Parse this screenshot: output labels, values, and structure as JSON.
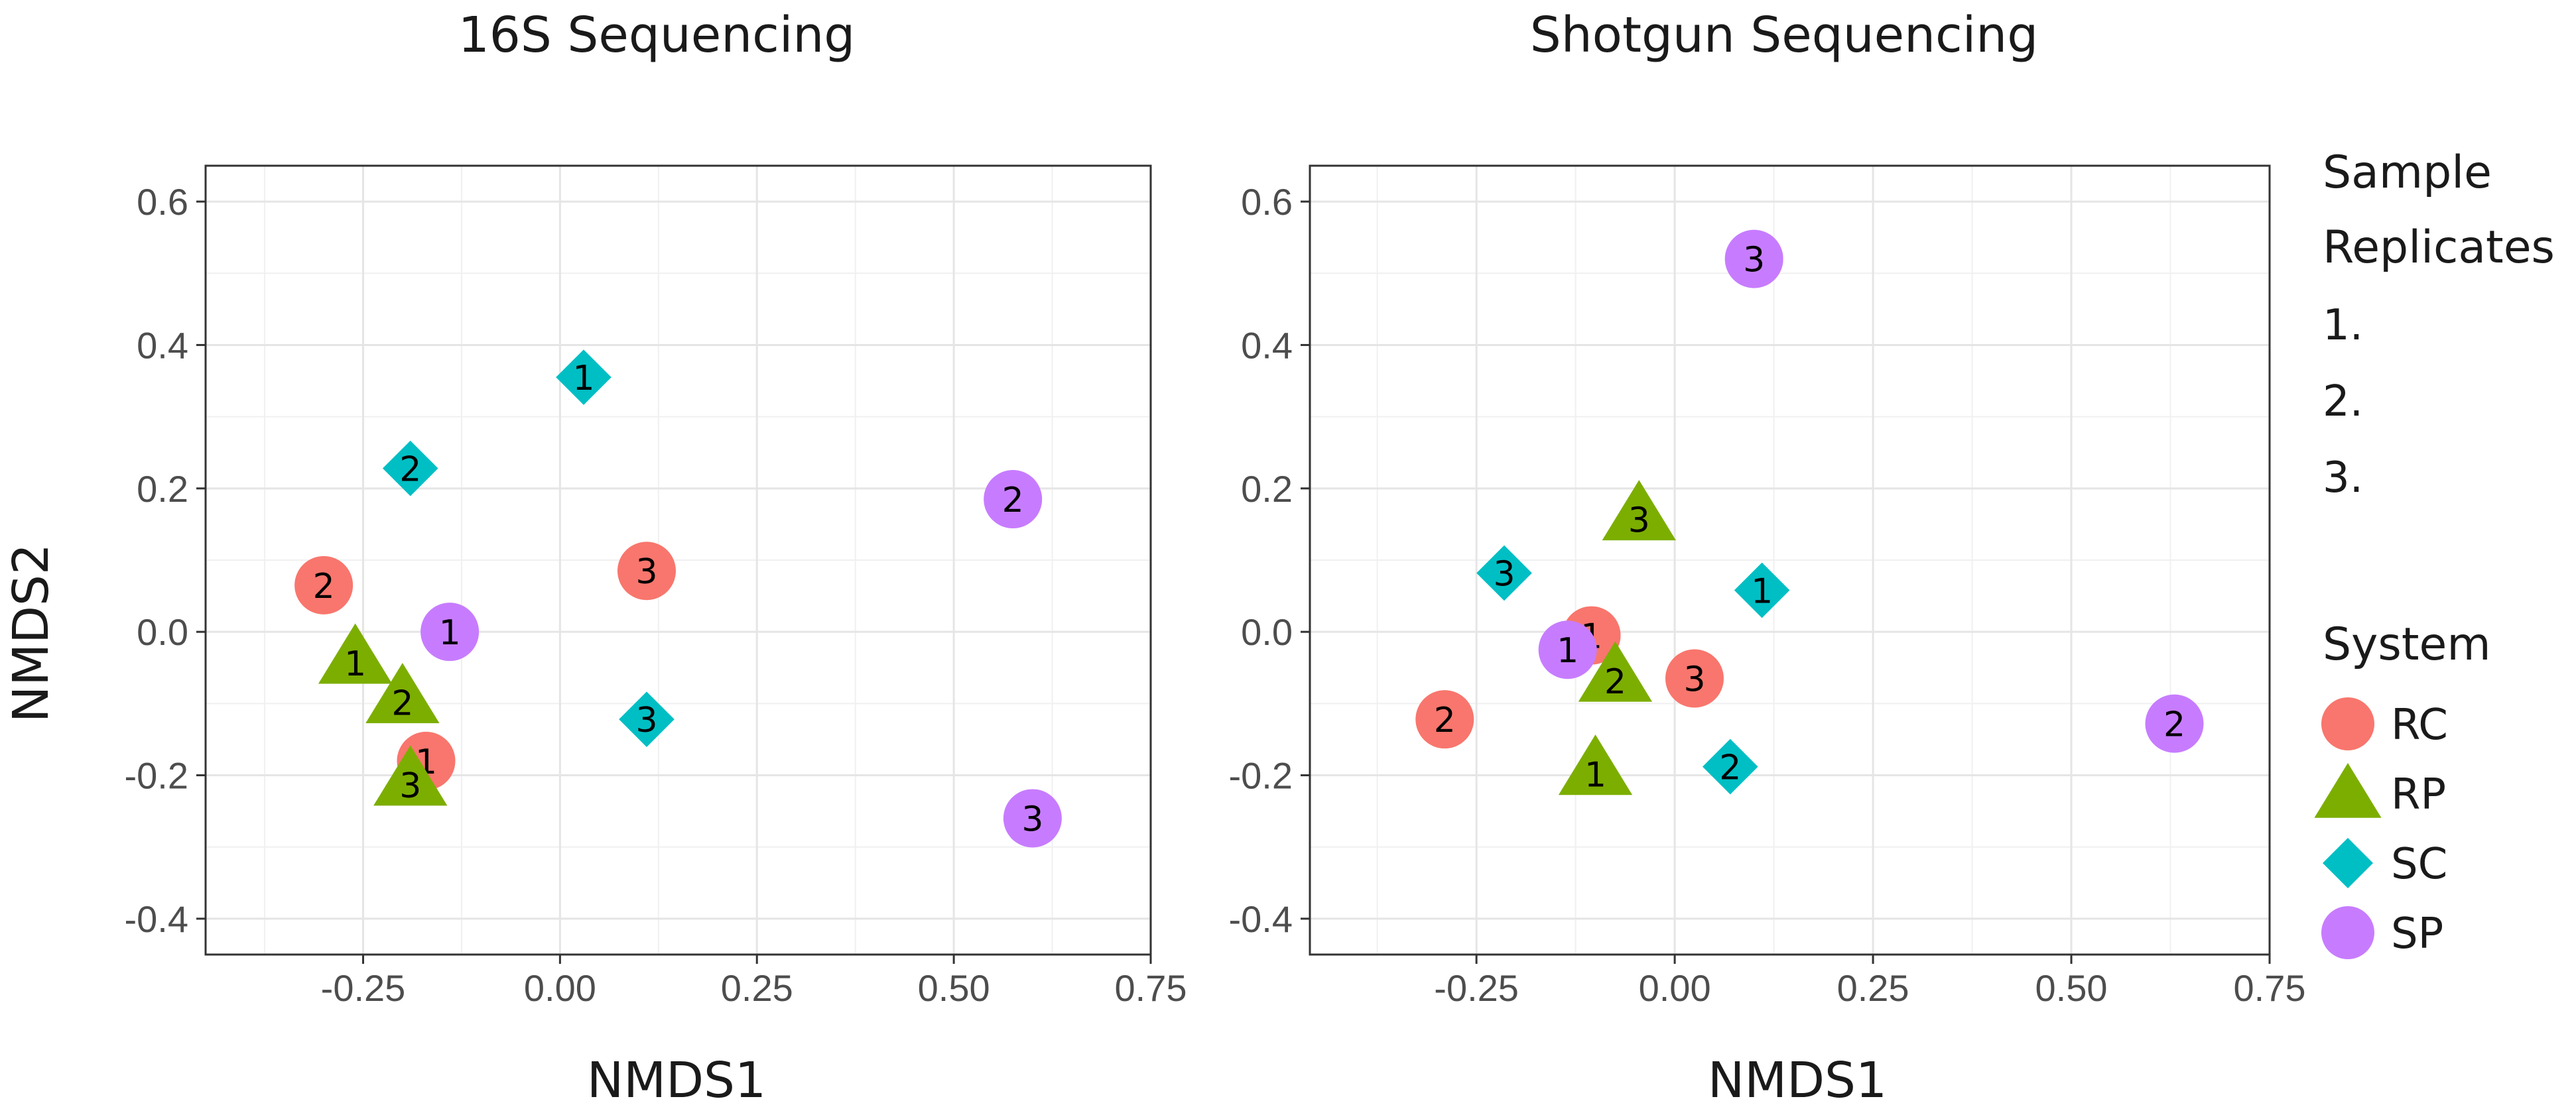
{
  "chart_data": [
    {
      "type": "scatter",
      "title": "16S Sequencing",
      "xlabel": "NMDS1",
      "ylabel": "NMDS2",
      "xlim": [
        -0.45,
        0.75
      ],
      "ylim": [
        -0.45,
        0.65
      ],
      "xticks": [
        -0.25,
        0.0,
        0.25,
        0.5,
        0.75
      ],
      "xtick_labels": [
        "-0.25",
        "0.00",
        "0.25",
        "0.50",
        "0.75"
      ],
      "yticks": [
        -0.4,
        -0.2,
        0.0,
        0.2,
        0.4,
        0.6
      ],
      "ytick_labels": [
        "-0.4",
        "-0.2",
        "0.0",
        "0.2",
        "0.4",
        "0.6"
      ],
      "grid": true,
      "series": [
        {
          "name": "RC",
          "points": [
            {
              "x": -0.17,
              "y": -0.18,
              "label": "1"
            },
            {
              "x": -0.3,
              "y": 0.065,
              "label": "2"
            },
            {
              "x": 0.11,
              "y": 0.085,
              "label": "3"
            }
          ]
        },
        {
          "name": "RP",
          "points": [
            {
              "x": -0.26,
              "y": -0.035,
              "label": "1"
            },
            {
              "x": -0.2,
              "y": -0.09,
              "label": "2"
            },
            {
              "x": -0.19,
              "y": -0.205,
              "label": "3"
            }
          ]
        },
        {
          "name": "SC",
          "points": [
            {
              "x": 0.03,
              "y": 0.355,
              "label": "1"
            },
            {
              "x": -0.19,
              "y": 0.228,
              "label": "2"
            },
            {
              "x": 0.11,
              "y": -0.122,
              "label": "3"
            }
          ]
        },
        {
          "name": "SP",
          "points": [
            {
              "x": -0.14,
              "y": 0.0,
              "label": "1"
            },
            {
              "x": 0.575,
              "y": 0.185,
              "label": "2"
            },
            {
              "x": 0.6,
              "y": -0.26,
              "label": "3"
            }
          ]
        }
      ]
    },
    {
      "type": "scatter",
      "title": "Shotgun Sequencing",
      "xlabel": "NMDS1",
      "ylabel": "",
      "xlim": [
        -0.46,
        0.75
      ],
      "ylim": [
        -0.45,
        0.65
      ],
      "xticks": [
        -0.25,
        0.0,
        0.25,
        0.5,
        0.75
      ],
      "xtick_labels": [
        "-0.25",
        "0.00",
        "0.25",
        "0.50",
        "0.75"
      ],
      "yticks": [
        -0.4,
        -0.2,
        0.0,
        0.2,
        0.4,
        0.6
      ],
      "ytick_labels": [
        "-0.4",
        "-0.2",
        "0.0",
        "0.2",
        "0.4",
        "0.6"
      ],
      "grid": true,
      "series": [
        {
          "name": "RC",
          "points": [
            {
              "x": -0.105,
              "y": -0.005,
              "label": "1"
            },
            {
              "x": -0.29,
              "y": -0.122,
              "label": "2"
            },
            {
              "x": 0.025,
              "y": -0.065,
              "label": "3"
            }
          ]
        },
        {
          "name": "RP",
          "points": [
            {
              "x": -0.1,
              "y": -0.19,
              "label": "1"
            },
            {
              "x": -0.075,
              "y": -0.06,
              "label": "2"
            },
            {
              "x": -0.045,
              "y": 0.165,
              "label": "3"
            }
          ]
        },
        {
          "name": "SC",
          "points": [
            {
              "x": 0.11,
              "y": 0.058,
              "label": "1"
            },
            {
              "x": 0.07,
              "y": -0.188,
              "label": "2"
            },
            {
              "x": -0.215,
              "y": 0.082,
              "label": "3"
            }
          ]
        },
        {
          "name": "SP",
          "points": [
            {
              "x": -0.135,
              "y": -0.025,
              "label": "1"
            },
            {
              "x": 0.63,
              "y": -0.128,
              "label": "2"
            },
            {
              "x": 0.1,
              "y": 0.52,
              "label": "3"
            }
          ]
        }
      ]
    }
  ],
  "legend": {
    "replicates_title_line1": "Sample",
    "replicates_title_line2": "Replicates",
    "replicates": [
      "1.",
      "2.",
      "3."
    ],
    "system_title": "System",
    "system_items": [
      {
        "label": "RC",
        "shape": "circle",
        "color": "#f8766d"
      },
      {
        "label": "RP",
        "shape": "triangle",
        "color": "#7cae00"
      },
      {
        "label": "SC",
        "shape": "diamond",
        "color": "#00bfc4"
      },
      {
        "label": "SP",
        "shape": "circle",
        "color": "#c77cff"
      }
    ]
  }
}
